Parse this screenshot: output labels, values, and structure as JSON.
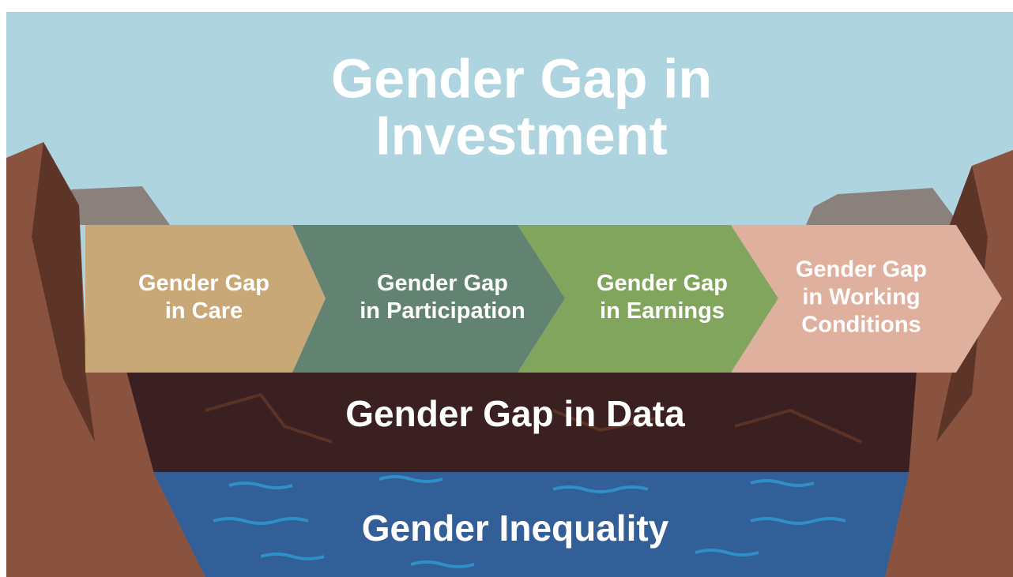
{
  "title": [
    "Gender Gap in",
    "Investment"
  ],
  "stages": [
    {
      "lines": [
        "Gender Gap",
        "in Care"
      ]
    },
    {
      "lines": [
        "Gender Gap",
        "in Participation"
      ]
    },
    {
      "lines": [
        "Gender Gap",
        "in Earnings"
      ]
    },
    {
      "lines": [
        "Gender Gap",
        "in Working",
        "Conditions"
      ]
    }
  ],
  "data_gap": "Gender Gap in Data",
  "base": "Gender Inequality"
}
